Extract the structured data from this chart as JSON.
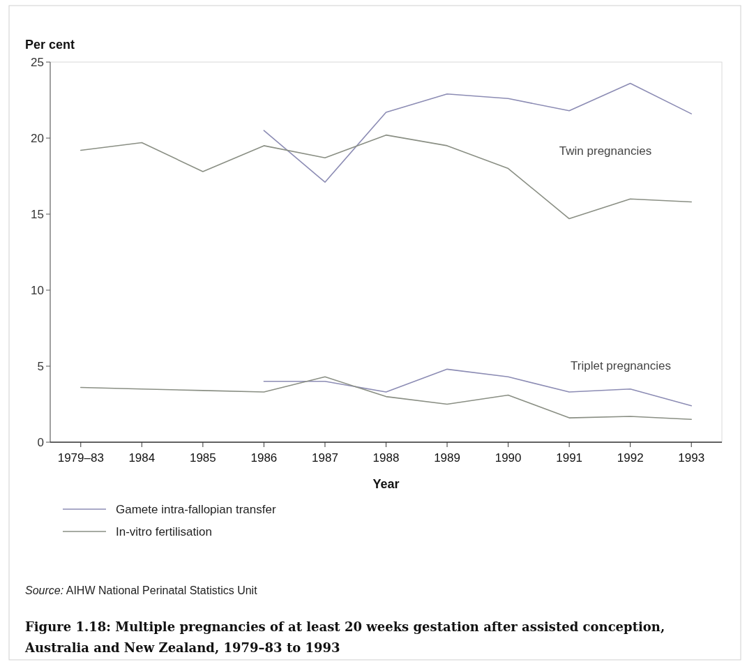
{
  "chart_data": {
    "type": "line",
    "title": "Figure 1.18: Multiple pregnancies of at least 20 weeks gestation after assisted conception, Australia and New Zealand, 1979–83 to 1993",
    "xlabel": "Year",
    "ylabel": "Per cent",
    "categories": [
      "1979–83",
      "1984",
      "1985",
      "1986",
      "1987",
      "1988",
      "1989",
      "1990",
      "1991",
      "1992",
      "1993"
    ],
    "series": [
      {
        "name": "Gamete intra-fallopian transfer",
        "color": "#8c8cb4",
        "values": [
          null,
          null,
          null,
          20.5,
          17.1,
          21.7,
          22.9,
          22.6,
          21.8,
          23.6,
          21.6
        ]
      },
      {
        "name": "In-vitro fertilisation",
        "color": "#8a8f84",
        "values": [
          19.2,
          19.7,
          17.8,
          19.5,
          18.7,
          20.2,
          19.5,
          18.0,
          14.7,
          16.0,
          15.8
        ]
      },
      {
        "color": "#8c8cb4",
        "values": [
          null,
          null,
          null,
          4.0,
          4.0,
          3.3,
          4.8,
          4.3,
          3.3,
          3.5,
          2.4
        ]
      },
      {
        "color": "#8a8f84",
        "values": [
          3.6,
          3.5,
          3.4,
          3.3,
          4.3,
          3.0,
          2.5,
          3.1,
          1.6,
          1.7,
          1.5
        ]
      }
    ],
    "ylim": [
      0,
      25
    ],
    "yticks": [
      0,
      5,
      10,
      15,
      20,
      25
    ],
    "grid": false,
    "legend": "bottom left",
    "marker": "none",
    "line_style": "solid",
    "annotations": [
      "Twin pregnancies",
      "Triplet pregnancies",
      "Source: AIHW National Perinatal Statistics Unit"
    ]
  }
}
